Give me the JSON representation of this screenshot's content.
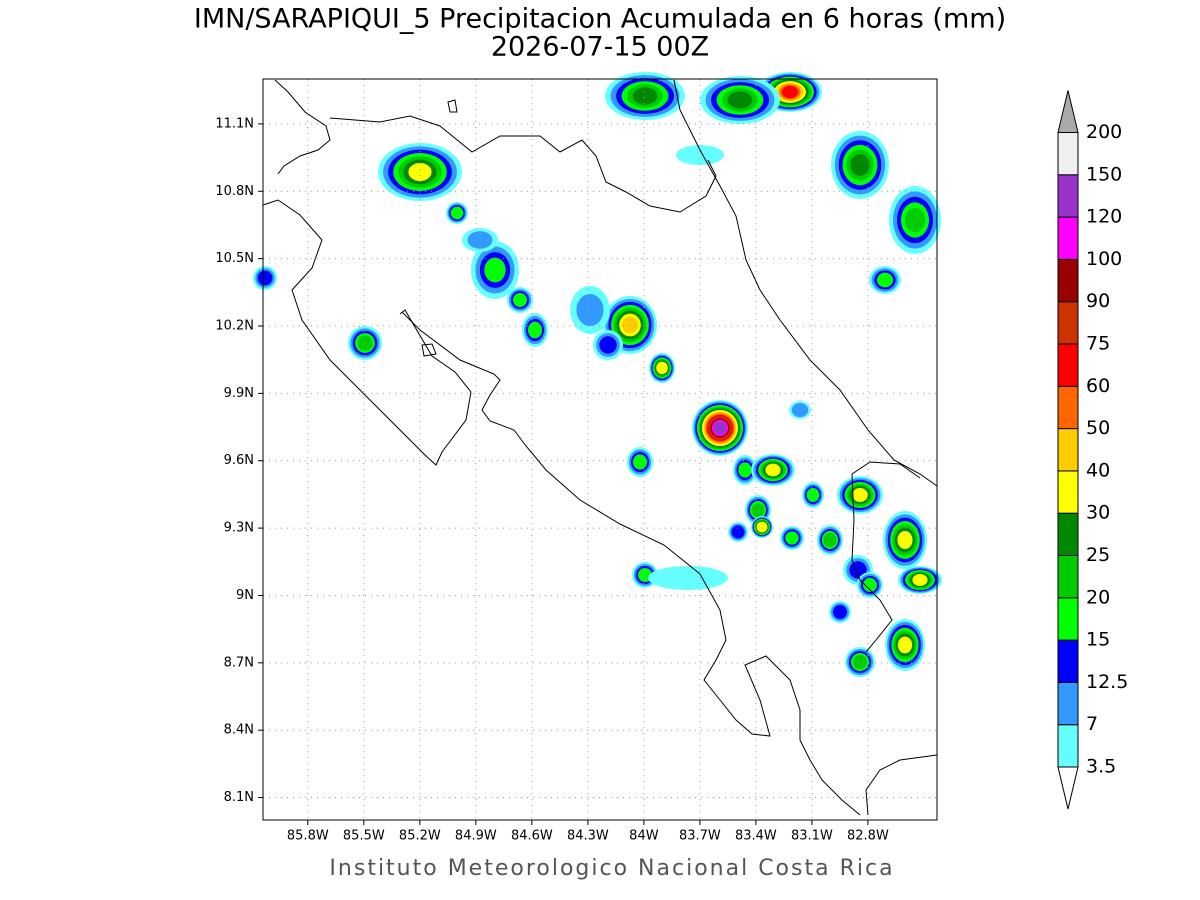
{
  "map": {
    "title": "IMN/SARAPIQUI_5 Precipitacion Acumulada en 6 horas (mm)",
    "subtitle": "2026-07-15 00Z",
    "footer": "Instituto Meteorologico Nacional Costa Rica",
    "xlim": [
      -86.04,
      -82.43
    ],
    "ylim": [
      8.0,
      11.3
    ],
    "xticks": [
      {
        "value": -85.8,
        "label": "85.8W"
      },
      {
        "value": -85.5,
        "label": "85.5W"
      },
      {
        "value": -85.2,
        "label": "85.2W"
      },
      {
        "value": -84.9,
        "label": "84.9W"
      },
      {
        "value": -84.6,
        "label": "84.6W"
      },
      {
        "value": -84.3,
        "label": "84.3W"
      },
      {
        "value": -84,
        "label": "84W"
      },
      {
        "value": -83.7,
        "label": "83.7W"
      },
      {
        "value": -83.4,
        "label": "83.4W"
      },
      {
        "value": -83.1,
        "label": "83.1W"
      },
      {
        "value": -82.8,
        "label": "82.8W"
      }
    ],
    "yticks": [
      {
        "value": 8.1,
        "label": "8.1N"
      },
      {
        "value": 8.4,
        "label": "8.4N"
      },
      {
        "value": 8.7,
        "label": "8.7N"
      },
      {
        "value": 9,
        "label": "9N"
      },
      {
        "value": 9.3,
        "label": "9.3N"
      },
      {
        "value": 9.6,
        "label": "9.6N"
      },
      {
        "value": 9.9,
        "label": "9.9N"
      },
      {
        "value": 10.2,
        "label": "10.2N"
      },
      {
        "value": 10.5,
        "label": "10.5N"
      },
      {
        "value": 10.8,
        "label": "10.8N"
      },
      {
        "value": 11.1,
        "label": "11.1N"
      }
    ],
    "grid": true,
    "colorbar": {
      "levels": [
        3.5,
        7,
        12.5,
        15,
        20,
        25,
        30,
        40,
        50,
        60,
        75,
        90,
        100,
        120,
        150,
        200
      ],
      "colors": [
        "#ffffff",
        "#66ffff",
        "#3399ff",
        "#0000ff",
        "#00ff00",
        "#00cc00",
        "#008800",
        "#ffff00",
        "#ffcc00",
        "#ff6600",
        "#ff0000",
        "#cc3300",
        "#990000",
        "#ff00ff",
        "#9933cc",
        "#f0f0f0",
        "#aaaaaa"
      ]
    }
  }
}
